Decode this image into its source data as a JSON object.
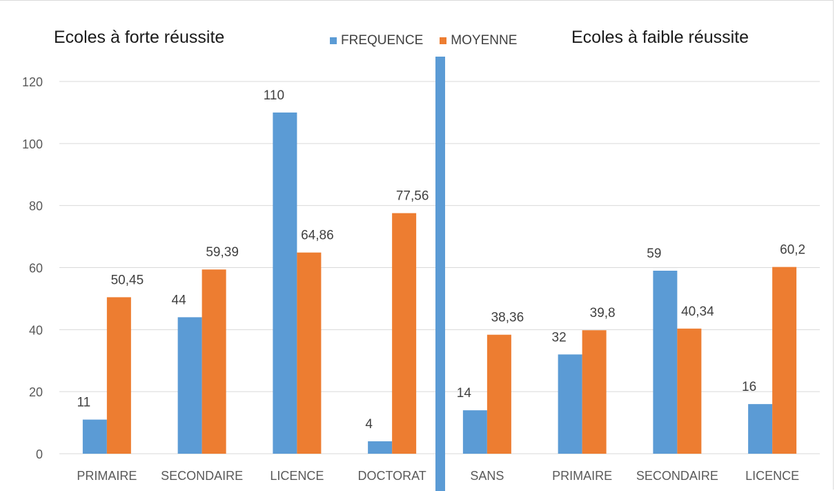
{
  "headings": {
    "left": "Ecoles à forte réussite",
    "right": "Ecoles à faible réussite"
  },
  "colors": {
    "frequence": "#5b9bd5",
    "moyenne": "#ed7d31",
    "grid": "#d9d9d9",
    "divider": "#5b9bd5"
  },
  "chart_data": {
    "type": "bar",
    "categories": [
      "PRIMAIRE",
      "SECONDAIRE",
      "LICENCE",
      "DOCTORAT",
      "SANS",
      "PRIMAIRE",
      "SECONDAIRE",
      "LICENCE"
    ],
    "series": [
      {
        "name": "FREQUENCE",
        "values": [
          11,
          44,
          110,
          4,
          14,
          32,
          59,
          16
        ],
        "labels": [
          "11",
          "44",
          "110",
          "4",
          "14",
          "32",
          "59",
          "16"
        ]
      },
      {
        "name": "MOYENNE",
        "values": [
          50.45,
          59.39,
          64.86,
          77.56,
          38.36,
          39.8,
          40.34,
          60.2
        ],
        "labels": [
          "50,45",
          "59,39",
          "64,86",
          "77,56",
          "38,36",
          "39,8",
          "40,34",
          "60,2"
        ]
      }
    ],
    "yticks": [
      0,
      20,
      40,
      60,
      80,
      100,
      120
    ],
    "ylim": [
      0,
      120
    ],
    "grid": true,
    "legend": "top-center"
  }
}
